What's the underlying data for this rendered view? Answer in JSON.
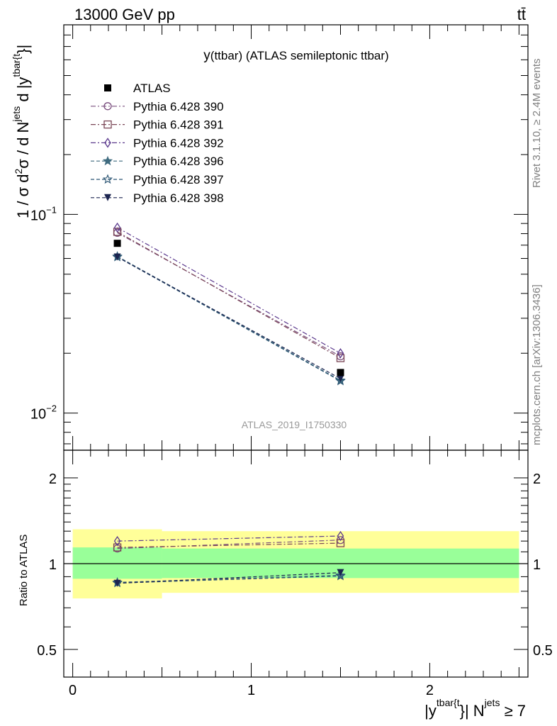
{
  "header": {
    "energy_label": "13000 GeV pp",
    "process_label": "tt̄"
  },
  "side_labels": {
    "rivet": "Rivet 3.1.10, ≥ 2.4M events",
    "source": "mcplots.cern.ch [arXiv:1306.3436]"
  },
  "chart_data": [
    {
      "type": "line",
      "title": "y(ttbar) (ATLAS semileptonic ttbar)",
      "title_parts": {
        "main": "y",
        "paren": "(ttbar) (ATLAS semileptonic ttbar)"
      },
      "watermark": "ATLAS_2019_I1750330",
      "yscale": "log",
      "ylim": [
        0.0065,
        0.9
      ],
      "xlim": [
        -0.05,
        2.55
      ],
      "ylabel": "1 / σ d²σ / d N^jets d |y^tbar{t}|",
      "ylabel_parts": {
        "a": "1 / σ d",
        "b": "2",
        "c": "σ / d N",
        "d": "jets",
        "e": " d |y",
        "f": "tbar{t",
        "g": "}|"
      },
      "ytick_labels": [
        {
          "value": 0.1,
          "base": "10",
          "exp": "−1"
        },
        {
          "value": 0.01,
          "base": "10",
          "exp": "−2"
        }
      ],
      "x": [
        0.25,
        1.5
      ],
      "reference": {
        "name": "ATLAS",
        "marker": "square",
        "color": "#000000",
        "values": [
          0.0715,
          0.016
        ]
      },
      "series": [
        {
          "name": "Pythia 6.428 390",
          "marker": "circle-open",
          "dash": "dashdot",
          "color": "#7a4e7e",
          "values": [
            0.0808,
            0.0193
          ]
        },
        {
          "name": "Pythia 6.428 391",
          "marker": "square-open",
          "dash": "dashdot",
          "color": "#7a4656",
          "values": [
            0.0817,
            0.0189
          ]
        },
        {
          "name": "Pythia 6.428 392",
          "marker": "diamond-open",
          "dash": "dashdot",
          "color": "#5c3a8e",
          "values": [
            0.0858,
            0.02
          ]
        },
        {
          "name": "Pythia 6.428 396",
          "marker": "star-filled",
          "dash": "dashed",
          "color": "#3f6b7f",
          "values": [
            0.0615,
            0.0146
          ]
        },
        {
          "name": "Pythia 6.428 397",
          "marker": "star-open",
          "dash": "dashed",
          "color": "#2b5573",
          "values": [
            0.061,
            0.0145
          ]
        },
        {
          "name": "Pythia 6.428 398",
          "marker": "triangle-down-filled",
          "dash": "dashed",
          "color": "#1c2550",
          "values": [
            0.061,
            0.0149
          ]
        }
      ]
    },
    {
      "type": "line",
      "title": "Ratio to ATLAS",
      "ylabel": "Ratio to ATLAS",
      "xlabel": "|y^tbar{t}| N^jets ≥ 7",
      "xlabel_parts": {
        "a": "|y",
        "b": "tbar{t",
        "c": "}| N",
        "d": "jets",
        "e": " ≥ 7"
      },
      "yscale": "log",
      "ylim": [
        0.4,
        2.5
      ],
      "xlim": [
        -0.05,
        2.55
      ],
      "xtick_labels": [
        "0",
        "1",
        "2"
      ],
      "ytick_labels": [
        "0.5",
        "1",
        "2"
      ],
      "bands": [
        {
          "x": [
            0,
            0.5
          ],
          "yellow": [
            0.755,
            1.32
          ],
          "green": [
            0.885,
            1.14
          ]
        },
        {
          "x": [
            0.5,
            2.5
          ],
          "yellow": [
            0.79,
            1.3
          ],
          "green": [
            0.89,
            1.13
          ]
        }
      ],
      "x": [
        0.25,
        1.5
      ],
      "series": [
        {
          "name": "Pythia 6.428 390",
          "values": [
            1.13,
            1.21
          ]
        },
        {
          "name": "Pythia 6.428 391",
          "values": [
            1.14,
            1.18
          ]
        },
        {
          "name": "Pythia 6.428 392",
          "values": [
            1.2,
            1.25
          ]
        },
        {
          "name": "Pythia 6.428 396",
          "values": [
            0.86,
            0.91
          ]
        },
        {
          "name": "Pythia 6.428 397",
          "values": [
            0.855,
            0.905
          ]
        },
        {
          "name": "Pythia 6.428 398",
          "values": [
            0.853,
            0.93
          ]
        }
      ]
    }
  ]
}
